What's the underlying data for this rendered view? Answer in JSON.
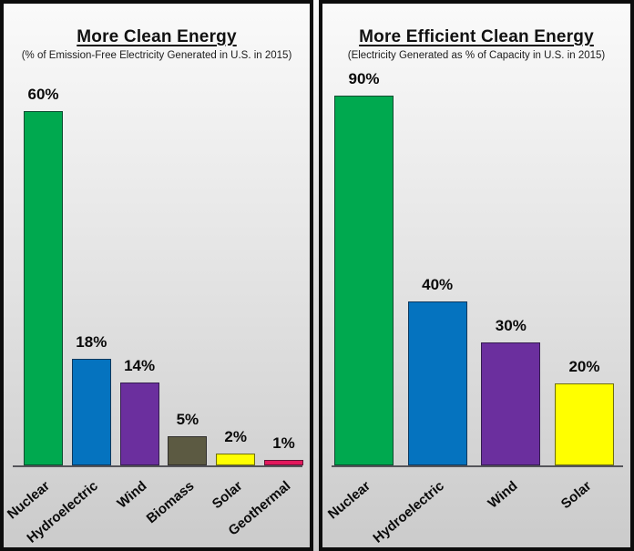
{
  "chart_data": [
    {
      "type": "bar",
      "title": "More Clean Energy",
      "subtitle": "(% of Emission-Free Electricity Generated in U.S. in 2015)",
      "categories": [
        "Nuclear",
        "Hydroelectric",
        "Wind",
        "Biomass",
        "Solar",
        "Geothermal"
      ],
      "values": [
        60,
        18,
        14,
        5,
        2,
        1
      ],
      "value_labels": [
        "60%",
        "18%",
        "14%",
        "5%",
        "2%",
        "1%"
      ],
      "colors": [
        "#00A94F",
        "#0573BF",
        "#6B2F9E",
        "#5C5A42",
        "#FFFF00",
        "#E2185C"
      ],
      "xlabel": "",
      "ylabel": "",
      "ylim": [
        0,
        60
      ],
      "grid": false,
      "legend": null
    },
    {
      "type": "bar",
      "title": "More Efficient Clean Energy",
      "subtitle": "(Electricity Generated as % of Capacity in U.S. in 2015)",
      "categories": [
        "Nuclear",
        "Hydroelectric",
        "Wind",
        "Solar"
      ],
      "values": [
        90,
        40,
        30,
        20
      ],
      "value_labels": [
        "90%",
        "40%",
        "30%",
        "20%"
      ],
      "colors": [
        "#00A94F",
        "#0573BF",
        "#6B2F9E",
        "#FFFF00"
      ],
      "xlabel": "",
      "ylabel": "",
      "ylim": [
        0,
        90
      ],
      "grid": false,
      "legend": null
    }
  ],
  "style_colors": {
    "panel_border": "#0d0d0d",
    "axis_line": "#55555a",
    "background_top": "#fafafa",
    "background_bottom": "#cbcbcb"
  }
}
